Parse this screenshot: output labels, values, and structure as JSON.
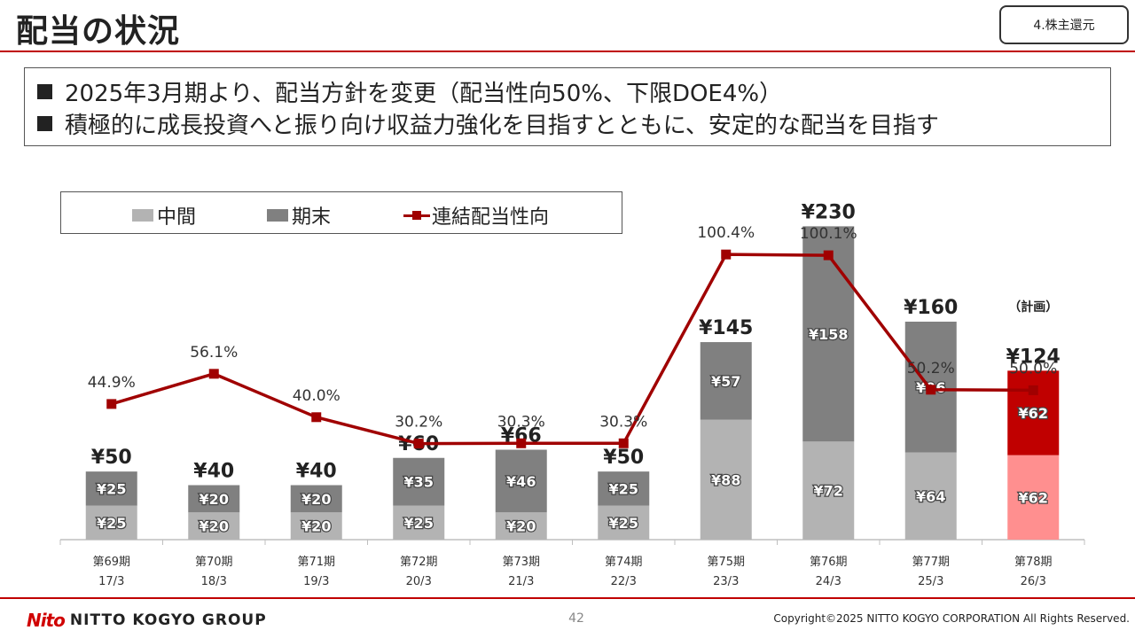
{
  "title": "配当の状況",
  "section_tag": "4.株主還元",
  "summary": [
    "2025年3月期より、配当方針を変更（配当性向50%、下限DOE4%）",
    "積極的に成長投資へと振り向け収益力強化を目指すとともに、安定的な配当を目指す"
  ],
  "legend": {
    "interim": "中間",
    "year_end": "期末",
    "payout": "連結配当性向"
  },
  "chart_data": {
    "type": "bar",
    "stacked": true,
    "currency": "¥",
    "categories": [
      "第69期",
      "第70期",
      "第71期",
      "第72期",
      "第73期",
      "第74期",
      "第75期",
      "第76期",
      "第77期",
      "第78期"
    ],
    "fiscal_years": [
      "17/3",
      "18/3",
      "19/3",
      "20/3",
      "21/3",
      "22/3",
      "23/3",
      "24/3",
      "25/3",
      "26/3"
    ],
    "series": [
      {
        "name": "中間",
        "values": [
          25,
          20,
          20,
          25,
          20,
          25,
          88,
          72,
          64,
          62
        ]
      },
      {
        "name": "期末",
        "values": [
          25,
          20,
          20,
          35,
          46,
          25,
          57,
          158,
          96,
          62
        ]
      }
    ],
    "totals": [
      50,
      40,
      40,
      60,
      66,
      50,
      145,
      230,
      160,
      124
    ],
    "payout_ratio": {
      "name": "連結配当性向",
      "values": [
        44.9,
        56.1,
        40.0,
        30.2,
        30.3,
        30.3,
        100.4,
        100.1,
        50.2,
        50.0
      ],
      "labels": [
        "44.9%",
        "56.1%",
        "40.0%",
        "30.2%",
        "30.3%",
        "30.3%",
        "100.4%",
        "100.1%",
        "50.2%",
        "50.0%"
      ]
    },
    "plan_index": 9,
    "plan_label": "（計画）",
    "ylim": [
      0,
      240
    ],
    "colors": {
      "interim": "#b3b3b3",
      "year_end": "#808080",
      "plan_interim": "#ff8f8f",
      "plan_year_end": "#c00000",
      "line": "#a00000"
    }
  },
  "footer": {
    "logo_mark": "Nito",
    "logo_text": "NITTO KOGYO GROUP",
    "page": "42",
    "copyright": "Copyright©2025 NITTO KOGYO CORPORATION All Rights Reserved."
  }
}
